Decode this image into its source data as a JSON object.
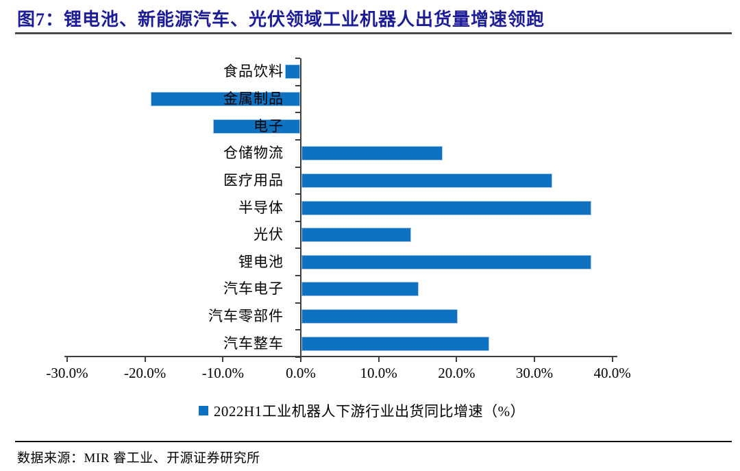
{
  "figure": {
    "title": "图7：锂电池、新能源汽车、光伏领域工业机器人出货量增速领跑",
    "title_color": "#1c1c99",
    "source": "数据来源：MIR 睿工业、开源证券研究所"
  },
  "chart_data": {
    "type": "bar",
    "orientation": "horizontal",
    "title": "",
    "xlabel": "",
    "ylabel": "",
    "unit": "%",
    "categories": [
      "食品饮料",
      "金属制品",
      "电子",
      "仓储物流",
      "医疗用品",
      "半导体",
      "光伏",
      "锂电池",
      "汽车电子",
      "汽车零部件",
      "汽车整车"
    ],
    "values": [
      -1.9,
      -19.2,
      -11.2,
      18.1,
      32.2,
      37.2,
      14.1,
      37.2,
      15,
      20.1,
      24.1
    ],
    "legend": "2022H1工业机器人下游行业出货同比增速（%）",
    "legend_position": "bottom",
    "x_tick_labels": [
      "-30.0%",
      "-20.0%",
      "-10.0%",
      "0.0%",
      "10.0%",
      "20.0%",
      "30.0%",
      "40.0%"
    ],
    "x_tick_values": [
      -30,
      -20,
      -10,
      0,
      10,
      20,
      30,
      40
    ],
    "xlim": [
      -30,
      40
    ],
    "grid": false,
    "bar_color": "#0e72c0",
    "bar_border_color": "#a9c7e7",
    "axis_color": "#3f3f3f"
  }
}
